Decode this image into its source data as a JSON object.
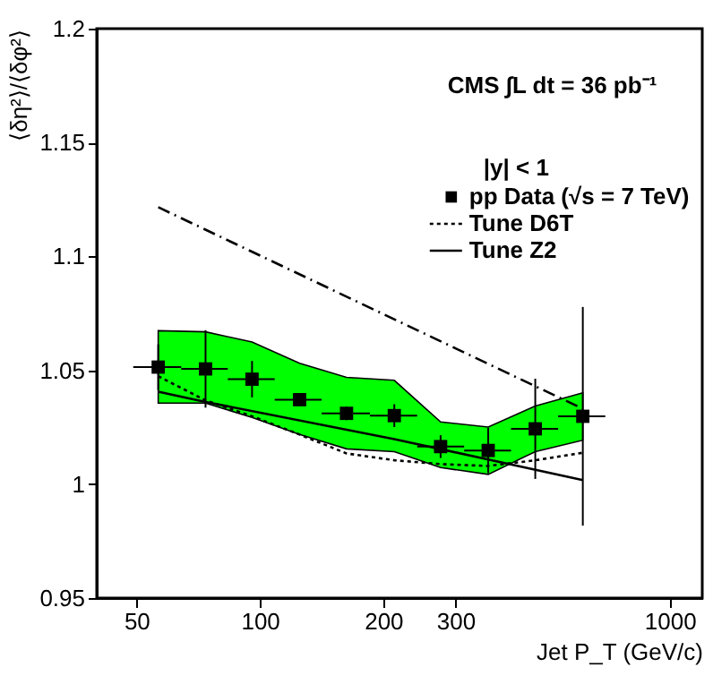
{
  "chart_data": {
    "type": "scatter",
    "ylabel": "⟨δη²⟩/⟨δφ²⟩",
    "xlabel": "Jet P_T (GeV/c)",
    "annotations": [
      "CMS  ∫L dt = 36 pb⁻¹"
    ],
    "legend_title": "|y| < 1",
    "legend": "top right",
    "log": "x",
    "grid": false,
    "xlim": [
      40,
      1200
    ],
    "xticks": [
      50,
      100,
      200,
      300,
      1000
    ],
    "ylim": [
      0.95,
      1.2
    ],
    "yticks": [
      0.95,
      1,
      1.05,
      1.1,
      1.15,
      1.2
    ],
    "series": [
      {
        "name": "pp Data (√s = 7 TeV)",
        "marker": "square",
        "color": "#000000",
        "x": [
          56.5,
          73.7,
          95.7,
          125,
          162.7,
          212.8,
          276,
          360.6,
          469.7,
          613.5
        ],
        "values": [
          1.0514,
          1.0506,
          1.0461,
          1.0371,
          1.0311,
          1.0301,
          1.0165,
          1.0148,
          1.0243,
          1.0298
        ],
        "errors": [
          0.01,
          0.017,
          0.008,
          0.002,
          0.003,
          0.005,
          0.005,
          0.01,
          0.022,
          0.048
        ],
        "xerrors": [
          [
            49.1,
            64.3
          ],
          [
            64.3,
            83.5
          ],
          [
            83.5,
            108.7
          ],
          [
            108.7,
            141.5
          ],
          [
            141.5,
            185.6
          ],
          [
            185.6,
            242
          ],
          [
            242,
            315
          ],
          [
            315,
            410
          ],
          [
            410,
            534
          ],
          [
            534,
            696
          ]
        ],
        "lower": [
          1.0356,
          1.0356,
          1.0293,
          1.0218,
          1.0155,
          1.0143,
          1.0073,
          1.0043,
          1.0143,
          1.0193
        ],
        "upper": [
          1.0674,
          1.0669,
          1.0624,
          1.0531,
          1.0469,
          1.0456,
          1.0273,
          1.0251,
          1.0343,
          1.0401
        ]
      },
      {
        "name": "Tune D6T",
        "type": "line",
        "line_style": "dotted",
        "color": "#000000",
        "x": [
          56.5,
          73.7,
          95.7,
          125,
          162.7,
          212.8,
          276,
          360.6,
          469.7,
          613.5
        ],
        "values": [
          1.0474,
          1.0368,
          1.0298,
          1.0218,
          1.0135,
          1.0105,
          1.0088,
          1.008,
          1.0105,
          1.0138
        ]
      },
      {
        "name": "Tune Z2",
        "type": "line",
        "line_style": "solid",
        "color": "#000000",
        "x": [
          56.5,
          73.7,
          212.8,
          613.5
        ],
        "values": [
          1.0406,
          1.0361,
          1.0198,
          1.0018
        ]
      },
      {
        "type": "line",
        "line_style": "dashdot",
        "color": "#000000",
        "x": [
          56.5,
          613.5
        ],
        "values": [
          1.1216,
          1.0331
        ]
      }
    ]
  }
}
